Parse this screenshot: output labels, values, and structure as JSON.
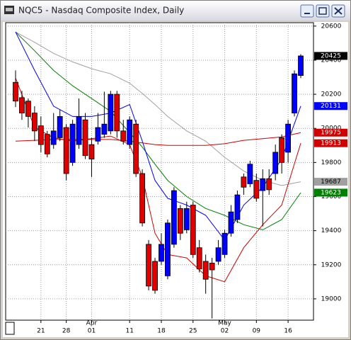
{
  "chart_data": {
    "type": "candlestick",
    "title": "NQC5 - Nasdaq Composite Index, Daily",
    "categories": [
      null,
      null,
      null,
      null,
      "21",
      null,
      null,
      null,
      "28",
      null,
      null,
      null,
      "01",
      null,
      null,
      null,
      null,
      null,
      "11",
      null,
      null,
      null,
      null,
      "18",
      null,
      null,
      null,
      null,
      "25",
      null,
      null,
      null,
      null,
      "02",
      null,
      null,
      null,
      null,
      "09",
      null,
      null,
      null,
      null,
      "16",
      null,
      null
    ],
    "month_labels": [
      null,
      null,
      null,
      null,
      null,
      null,
      null,
      null,
      null,
      null,
      null,
      null,
      "Apr",
      null,
      null,
      null,
      null,
      null,
      null,
      null,
      null,
      null,
      null,
      null,
      null,
      null,
      null,
      null,
      null,
      null,
      null,
      null,
      null,
      "May",
      null,
      null,
      null,
      null,
      null,
      null,
      null,
      null,
      null,
      null,
      null,
      null
    ],
    "open": [
      20270,
      20180,
      20160,
      20090,
      20015,
      19965,
      19905,
      19945,
      20005,
      19800,
      19905,
      20050,
      19905,
      19925,
      19965,
      19985,
      20200,
      19985,
      19905,
      20025,
      19735,
      19320,
      19220,
      19220,
      19135,
      19320,
      19530,
      19405,
      19550,
      19300,
      19220,
      19210,
      19220,
      19260,
      19385,
      19465,
      19715,
      19675,
      19695,
      19635,
      19705,
      19735,
      19945,
      19860,
      20090,
      20310
    ],
    "high": [
      20340,
      20220,
      20175,
      20130,
      20070,
      19985,
      20090,
      20110,
      20025,
      20050,
      20175,
      20090,
      19945,
      20090,
      20215,
      20220,
      20220,
      20050,
      20070,
      20050,
      19760,
      19345,
      19240,
      19385,
      19465,
      19655,
      19550,
      19570,
      19570,
      19345,
      19260,
      19240,
      19345,
      19405,
      19550,
      19635,
      19735,
      19810,
      19735,
      19760,
      19760,
      19905,
      19965,
      20050,
      20340,
      20435
    ],
    "low": [
      20125,
      20050,
      20005,
      19925,
      19860,
      19830,
      19880,
      19925,
      19695,
      19780,
      19880,
      19820,
      19715,
      19905,
      19945,
      19965,
      19945,
      19905,
      19880,
      19715,
      19425,
      19050,
      19030,
      19200,
      19115,
      19300,
      19345,
      19385,
      19240,
      19155,
      19030,
      18885,
      19200,
      19240,
      19365,
      19445,
      19610,
      19655,
      19570,
      19425,
      19610,
      19695,
      19735,
      19800,
      20070,
      20295
    ],
    "close": [
      20160,
      20090,
      20070,
      19985,
      19905,
      19850,
      19985,
      20070,
      19735,
      20025,
      20070,
      19840,
      19820,
      20005,
      20025,
      20200,
      19985,
      19925,
      20050,
      19735,
      19445,
      19075,
      19050,
      19320,
      19445,
      19635,
      19385,
      19530,
      19260,
      19175,
      19115,
      19170,
      19300,
      19385,
      19510,
      19610,
      19655,
      19790,
      19590,
      19705,
      19640,
      19860,
      19800,
      20025,
      20320,
      20425
    ],
    "up_color": "#0000ff",
    "down_color": "#e00000",
    "last_label_color": "#000000",
    "ylim": [
      18875,
      20620
    ],
    "yticks": [
      19000,
      19200,
      19400,
      19600,
      19800,
      20000,
      20200,
      20400,
      20600
    ],
    "grid": true,
    "lines": [
      {
        "color": "#a0a0a0",
        "x": [
          0,
          3,
          6,
          9,
          12,
          15,
          18,
          20,
          22,
          24,
          27,
          30,
          33,
          36,
          39,
          42,
          45
        ],
        "values": [
          20565,
          20505,
          20440,
          20390,
          20350,
          20320,
          20265,
          20205,
          20140,
          20070,
          19985,
          19925,
          19830,
          19750,
          19695,
          19665,
          19687
        ]
      },
      {
        "color": "#008000",
        "x": [
          0,
          3,
          6,
          9,
          12,
          15,
          18,
          20,
          22,
          24,
          27,
          30,
          33,
          36,
          39,
          42,
          45
        ],
        "values": [
          20565,
          20455,
          20340,
          20250,
          20175,
          20100,
          19975,
          19890,
          19790,
          19695,
          19600,
          19530,
          19490,
          19435,
          19405,
          19465,
          19623
        ]
      },
      {
        "color": "#0000ff",
        "x": [
          0,
          3,
          6,
          9,
          12,
          15,
          18,
          20,
          22,
          24,
          27,
          30,
          33,
          36,
          39,
          42,
          45
        ],
        "values": [
          20565,
          20340,
          20130,
          20070,
          20070,
          20090,
          20140,
          19925,
          19695,
          19590,
          19550,
          19490,
          19345,
          19550,
          19655,
          19820,
          20131
        ]
      },
      {
        "color": "#d00000",
        "x": [
          0,
          3,
          6,
          9,
          12,
          15,
          18,
          20,
          22,
          24,
          27,
          30,
          33,
          36,
          39,
          42,
          45
        ],
        "values": [
          20295,
          20005,
          19945,
          19925,
          19940,
          19955,
          19905,
          19715,
          19385,
          19260,
          19240,
          19135,
          19100,
          19300,
          19435,
          19550,
          19913
        ]
      },
      {
        "color": "#d00000",
        "x": [
          0,
          3,
          6,
          9,
          12,
          15,
          18,
          20,
          22,
          24,
          27,
          30,
          33,
          36,
          39,
          42,
          45
        ],
        "values": [
          19925,
          19930,
          19935,
          19935,
          19935,
          19935,
          19925,
          19915,
          19905,
          19900,
          19900,
          19900,
          19910,
          19930,
          19940,
          19950,
          19975
        ]
      }
    ]
  }
}
